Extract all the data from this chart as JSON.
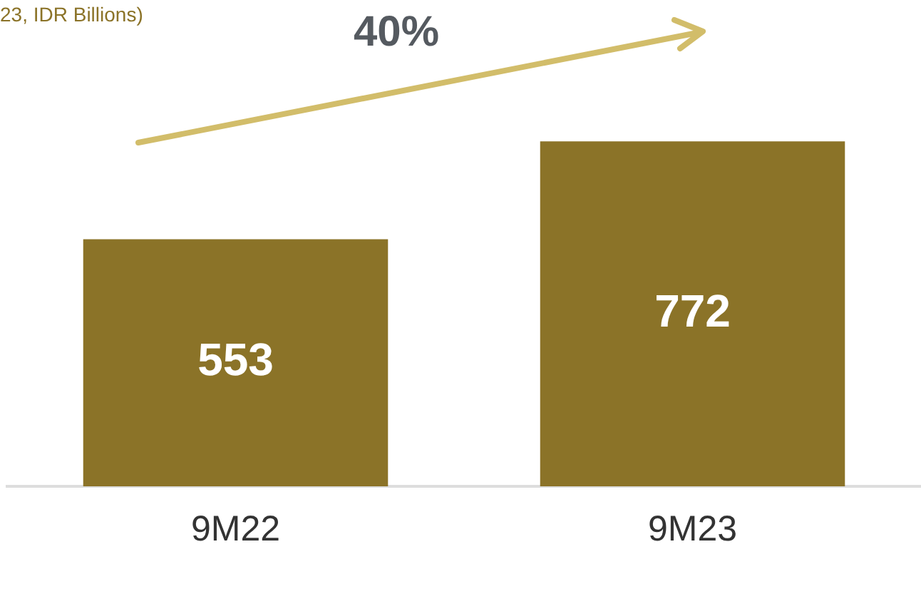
{
  "chart_data": {
    "type": "bar",
    "title": "23, IDR Billions)",
    "categories": [
      "9M22",
      "9M23"
    ],
    "values": [
      553,
      772
    ],
    "color": "#8b7328",
    "data_labels": true,
    "grid": false,
    "legend": false,
    "tick_labels": "x",
    "annotations": [
      "40%"
    ]
  }
}
